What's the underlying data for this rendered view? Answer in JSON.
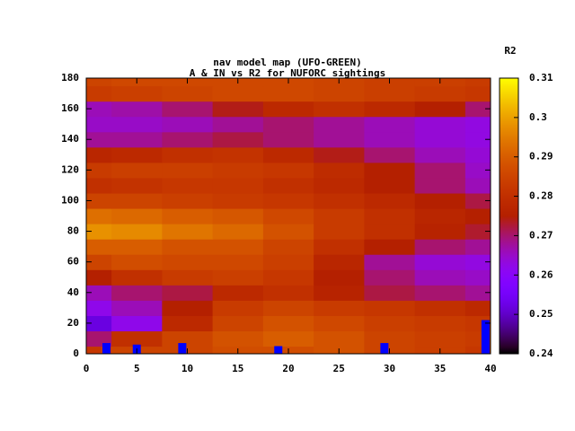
{
  "chart_data": {
    "type": "heatmap",
    "title": "nav model map (UFO-GREEN)",
    "subtitle": "A & IN vs R2 for NUFORC sightings",
    "colorbar_label": "R2",
    "x": [
      0,
      5,
      10,
      15,
      20,
      25,
      30,
      35,
      40
    ],
    "y": [
      0,
      10,
      20,
      30,
      40,
      50,
      60,
      70,
      80,
      90,
      100,
      110,
      120,
      130,
      140,
      150,
      160,
      170,
      180
    ],
    "z": [
      [
        0.282,
        0.285,
        0.285,
        0.287,
        0.287,
        0.288,
        0.285,
        0.284,
        0.282
      ],
      [
        0.27,
        0.28,
        0.285,
        0.288,
        0.29,
        0.288,
        0.285,
        0.284,
        0.283
      ],
      [
        0.252,
        0.262,
        0.278,
        0.285,
        0.288,
        0.286,
        0.284,
        0.283,
        0.282
      ],
      [
        0.262,
        0.266,
        0.275,
        0.283,
        0.285,
        0.283,
        0.282,
        0.28,
        0.278
      ],
      [
        0.266,
        0.27,
        0.272,
        0.278,
        0.28,
        0.276,
        0.272,
        0.27,
        0.268
      ],
      [
        0.275,
        0.28,
        0.283,
        0.284,
        0.282,
        0.275,
        0.27,
        0.266,
        0.265
      ],
      [
        0.285,
        0.287,
        0.286,
        0.286,
        0.284,
        0.277,
        0.268,
        0.264,
        0.263
      ],
      [
        0.29,
        0.29,
        0.288,
        0.288,
        0.285,
        0.28,
        0.275,
        0.27,
        0.268
      ],
      [
        0.298,
        0.297,
        0.294,
        0.292,
        0.288,
        0.283,
        0.28,
        0.276,
        0.273
      ],
      [
        0.293,
        0.292,
        0.29,
        0.289,
        0.286,
        0.283,
        0.28,
        0.277,
        0.275
      ],
      [
        0.285,
        0.285,
        0.284,
        0.283,
        0.282,
        0.28,
        0.278,
        0.275,
        0.272
      ],
      [
        0.28,
        0.281,
        0.282,
        0.282,
        0.28,
        0.278,
        0.275,
        0.27,
        0.266
      ],
      [
        0.283,
        0.284,
        0.284,
        0.283,
        0.282,
        0.279,
        0.275,
        0.27,
        0.265
      ],
      [
        0.277,
        0.278,
        0.28,
        0.281,
        0.278,
        0.274,
        0.27,
        0.266,
        0.264
      ],
      [
        0.268,
        0.268,
        0.27,
        0.272,
        0.27,
        0.268,
        0.266,
        0.264,
        0.263
      ],
      [
        0.265,
        0.265,
        0.266,
        0.268,
        0.27,
        0.268,
        0.266,
        0.264,
        0.263
      ],
      [
        0.266,
        0.267,
        0.27,
        0.274,
        0.278,
        0.28,
        0.278,
        0.275,
        0.27
      ],
      [
        0.283,
        0.284,
        0.285,
        0.286,
        0.286,
        0.285,
        0.284,
        0.283,
        0.282
      ],
      [
        0.285,
        0.286,
        0.286,
        0.286,
        0.286,
        0.285,
        0.284,
        0.284,
        0.283
      ]
    ],
    "markers": {
      "x": [
        2,
        5,
        9.5,
        19,
        29.5,
        39.5
      ],
      "values": [
        7,
        6,
        7,
        5,
        7,
        22
      ],
      "color": "#0000ff"
    },
    "xlim": [
      0,
      40
    ],
    "xticks": [
      0,
      5,
      10,
      15,
      20,
      25,
      30,
      35,
      40
    ],
    "ylim": [
      0,
      180
    ],
    "yticks": [
      0,
      20,
      40,
      60,
      80,
      100,
      120,
      140,
      160,
      180
    ],
    "zlim": [
      0.24,
      0.31
    ],
    "zticks": [
      0.24,
      0.25,
      0.26,
      0.27,
      0.28,
      0.29,
      0.3,
      0.31
    ]
  }
}
